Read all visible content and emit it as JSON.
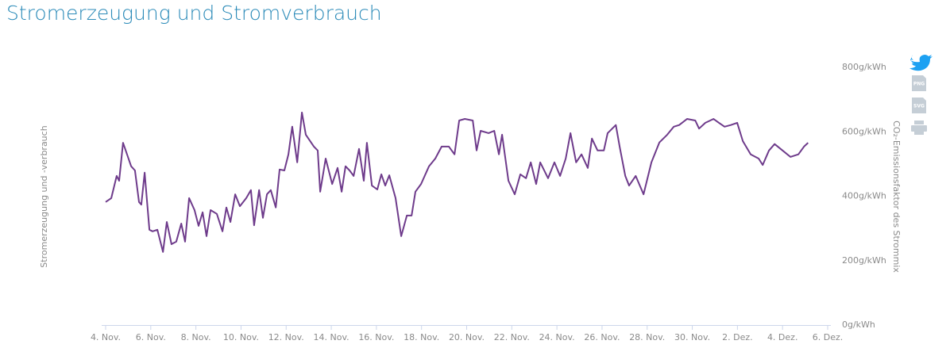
{
  "chart_data": {
    "type": "line",
    "title": "Stromerzeugung und Stromverbrauch",
    "y_label": "Stromerzeugung und -verbrauch",
    "y2_label": "CO₂-Emissionsfaktor des Strommix",
    "export_buttons": [
      "PNG",
      "SVG"
    ],
    "xlim": [
      0,
      32
    ],
    "xticks": [
      {
        "value": 0,
        "label": "4. Nov."
      },
      {
        "value": 2,
        "label": "6. Nov."
      },
      {
        "value": 4,
        "label": "8. Nov."
      },
      {
        "value": 6,
        "label": "10. Nov."
      },
      {
        "value": 8,
        "label": "12. Nov."
      },
      {
        "value": 10,
        "label": "14. Nov."
      },
      {
        "value": 12,
        "label": "16. Nov."
      },
      {
        "value": 14,
        "label": "18. Nov."
      },
      {
        "value": 16,
        "label": "20. Nov."
      },
      {
        "value": 18,
        "label": "22. Nov."
      },
      {
        "value": 20,
        "label": "24. Nov."
      },
      {
        "value": 22,
        "label": "26. Nov."
      },
      {
        "value": 24,
        "label": "28. Nov."
      },
      {
        "value": 26,
        "label": "30. Nov."
      },
      {
        "value": 28,
        "label": "2. Dez."
      },
      {
        "value": 30,
        "label": "4. Dez."
      },
      {
        "value": 32,
        "label": "6. Dez."
      }
    ],
    "y2lim": [
      0,
      800
    ],
    "y2ticks": [
      {
        "value": 0,
        "label": "0g/kWh"
      },
      {
        "value": 200,
        "label": "200g/kWh"
      },
      {
        "value": 400,
        "label": "400g/kWh"
      },
      {
        "value": 600,
        "label": "600g/kWh"
      },
      {
        "value": 800,
        "label": "800g/kWh"
      }
    ],
    "x": [
      0.0,
      0.25,
      0.49,
      0.6,
      0.77,
      1.13,
      1.3,
      1.48,
      1.58,
      1.73,
      1.94,
      2.08,
      2.29,
      2.54,
      2.71,
      2.92,
      3.13,
      3.35,
      3.52,
      3.7,
      3.94,
      4.12,
      4.3,
      4.47,
      4.65,
      4.93,
      5.18,
      5.35,
      5.53,
      5.74,
      5.95,
      6.23,
      6.44,
      6.58,
      6.8,
      6.97,
      7.15,
      7.32,
      7.54,
      7.71,
      7.92,
      8.1,
      8.27,
      8.49,
      8.7,
      8.87,
      9.23,
      9.4,
      9.51,
      9.75,
      10.04,
      10.28,
      10.46,
      10.63,
      10.81,
      10.99,
      11.23,
      11.44,
      11.58,
      11.8,
      12.04,
      12.22,
      12.39,
      12.57,
      12.85,
      13.1,
      13.35,
      13.56,
      13.73,
      13.98,
      14.33,
      14.61,
      14.89,
      15.21,
      15.46,
      15.67,
      15.92,
      16.27,
      16.44,
      16.62,
      16.97,
      17.22,
      17.43,
      17.57,
      17.85,
      18.13,
      18.38,
      18.63,
      18.84,
      19.08,
      19.26,
      19.61,
      19.89,
      20.14,
      20.39,
      20.6,
      20.85,
      21.09,
      21.37,
      21.55,
      21.8,
      22.08,
      22.25,
      22.61,
      22.78,
      23.03,
      23.2,
      23.49,
      23.84,
      24.19,
      24.54,
      24.89,
      25.18,
      25.42,
      25.77,
      26.13,
      26.3,
      26.58,
      26.94,
      27.18,
      27.43,
      27.71,
      27.99,
      28.24,
      28.59,
      28.94,
      29.12,
      29.4,
      29.65,
      30.0,
      30.35,
      30.7,
      30.95,
      31.13
    ],
    "series": [
      {
        "name": "CO₂-Emissionsfaktor",
        "color": "#6e3b8b",
        "axis": "y2",
        "values": [
          382,
          394,
          463,
          448,
          566,
          493,
          480,
          382,
          374,
          473,
          296,
          291,
          296,
          227,
          320,
          251,
          259,
          315,
          259,
          394,
          357,
          308,
          350,
          276,
          357,
          345,
          291,
          365,
          320,
          406,
          369,
          394,
          419,
          310,
          419,
          333,
          406,
          419,
          365,
          483,
          480,
          530,
          616,
          505,
          660,
          591,
          554,
          542,
          414,
          517,
          438,
          488,
          414,
          493,
          480,
          463,
          547,
          448,
          566,
          433,
          421,
          468,
          433,
          465,
          394,
          276,
          340,
          340,
          414,
          438,
          493,
          517,
          554,
          554,
          530,
          635,
          640,
          635,
          542,
          603,
          596,
          603,
          530,
          591,
          448,
          406,
          468,
          456,
          505,
          438,
          505,
          456,
          505,
          463,
          517,
          596,
          505,
          530,
          488,
          579,
          542,
          542,
          596,
          621,
          554,
          463,
          433,
          463,
          406,
          505,
          567,
          591,
          616,
          621,
          640,
          635,
          610,
          628,
          640,
          628,
          616,
          621,
          628,
          571,
          530,
          517,
          497,
          542,
          562,
          542,
          522,
          530,
          554,
          566
        ]
      }
    ]
  }
}
